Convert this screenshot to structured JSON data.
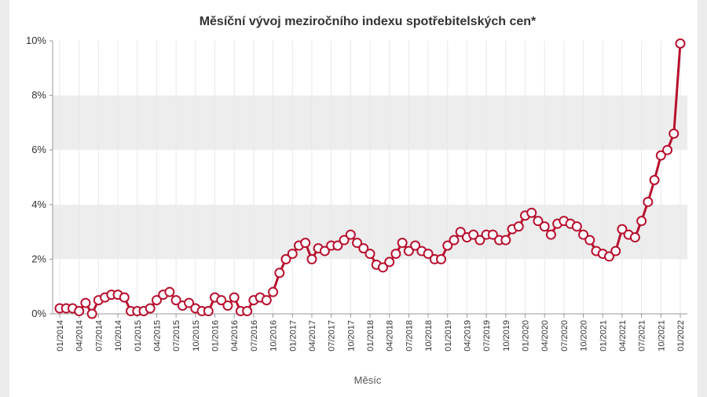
{
  "chart_data": {
    "type": "line",
    "title": "Měsíční vývoj meziročního indexu spotřebitelských cen*",
    "xlabel": "Měsíc",
    "ylabel": "",
    "y_unit": "%",
    "ylim": [
      0,
      10
    ],
    "yticks": [
      0,
      2,
      4,
      6,
      8,
      10
    ],
    "ytick_labels": [
      "0%",
      "2%",
      "4%",
      "6%",
      "8%",
      "10%"
    ],
    "x_tick_labels": [
      "01/2014",
      "04/2014",
      "07/2014",
      "10/2014",
      "01/2015",
      "04/2015",
      "07/2015",
      "10/2015",
      "01/2016",
      "04/2016",
      "07/2016",
      "10/2016",
      "01/2017",
      "04/2017",
      "07/2017",
      "10/2017",
      "01/2018",
      "04/2018",
      "07/2018",
      "10/2018",
      "01/2019",
      "04/2019",
      "07/2019",
      "10/2019",
      "01/2020",
      "04/2020",
      "07/2020",
      "10/2020",
      "01/2021",
      "04/2021",
      "07/2021",
      "10/2021",
      "01/2022"
    ],
    "grid": "alternating horizontal bands",
    "legend": "none",
    "colors": {
      "line": "#b8102e",
      "marker_fill": "#ffffff",
      "band": "#ededed"
    },
    "series": [
      {
        "x": [
          "01/2014",
          "02/2014",
          "03/2014",
          "04/2014",
          "05/2014",
          "06/2014",
          "07/2014",
          "08/2014",
          "09/2014",
          "10/2014",
          "11/2014",
          "12/2014",
          "01/2015",
          "02/2015",
          "03/2015",
          "04/2015",
          "05/2015",
          "06/2015",
          "07/2015",
          "08/2015",
          "09/2015",
          "10/2015",
          "11/2015",
          "12/2015",
          "01/2016",
          "02/2016",
          "03/2016",
          "04/2016",
          "05/2016",
          "06/2016",
          "07/2016",
          "08/2016",
          "09/2016",
          "10/2016",
          "11/2016",
          "12/2016",
          "01/2017",
          "02/2017",
          "03/2017",
          "04/2017",
          "05/2017",
          "06/2017",
          "07/2017",
          "08/2017",
          "09/2017",
          "10/2017",
          "11/2017",
          "12/2017",
          "01/2018",
          "02/2018",
          "03/2018",
          "04/2018",
          "05/2018",
          "06/2018",
          "07/2018",
          "08/2018",
          "09/2018",
          "10/2018",
          "11/2018",
          "12/2018",
          "01/2019",
          "02/2019",
          "03/2019",
          "04/2019",
          "05/2019",
          "06/2019",
          "07/2019",
          "08/2019",
          "09/2019",
          "10/2019",
          "11/2019",
          "12/2019",
          "01/2020",
          "02/2020",
          "03/2020",
          "04/2020",
          "05/2020",
          "06/2020",
          "07/2020",
          "08/2020",
          "09/2020",
          "10/2020",
          "11/2020",
          "12/2020",
          "01/2021",
          "02/2021",
          "03/2021",
          "04/2021",
          "05/2021",
          "06/2021",
          "07/2021",
          "08/2021",
          "09/2021",
          "10/2021",
          "11/2021",
          "12/2021",
          "01/2022"
        ],
        "values": [
          0.2,
          0.2,
          0.2,
          0.1,
          0.4,
          0.0,
          0.5,
          0.6,
          0.7,
          0.7,
          0.6,
          0.1,
          0.1,
          0.1,
          0.2,
          0.5,
          0.7,
          0.8,
          0.5,
          0.3,
          0.4,
          0.2,
          0.1,
          0.1,
          0.6,
          0.5,
          0.3,
          0.6,
          0.1,
          0.1,
          0.5,
          0.6,
          0.5,
          0.8,
          1.5,
          2.0,
          2.2,
          2.5,
          2.6,
          2.0,
          2.4,
          2.3,
          2.5,
          2.5,
          2.7,
          2.9,
          2.6,
          2.4,
          2.2,
          1.8,
          1.7,
          1.9,
          2.2,
          2.6,
          2.3,
          2.5,
          2.3,
          2.2,
          2.0,
          2.0,
          2.5,
          2.7,
          3.0,
          2.8,
          2.9,
          2.7,
          2.9,
          2.9,
          2.7,
          2.7,
          3.1,
          3.2,
          3.6,
          3.7,
          3.4,
          3.2,
          2.9,
          3.3,
          3.4,
          3.3,
          3.2,
          2.9,
          2.7,
          2.3,
          2.2,
          2.1,
          2.3,
          3.1,
          2.9,
          2.8,
          3.4,
          4.1,
          4.9,
          5.8,
          6.0,
          6.6,
          9.9
        ]
      }
    ]
  }
}
